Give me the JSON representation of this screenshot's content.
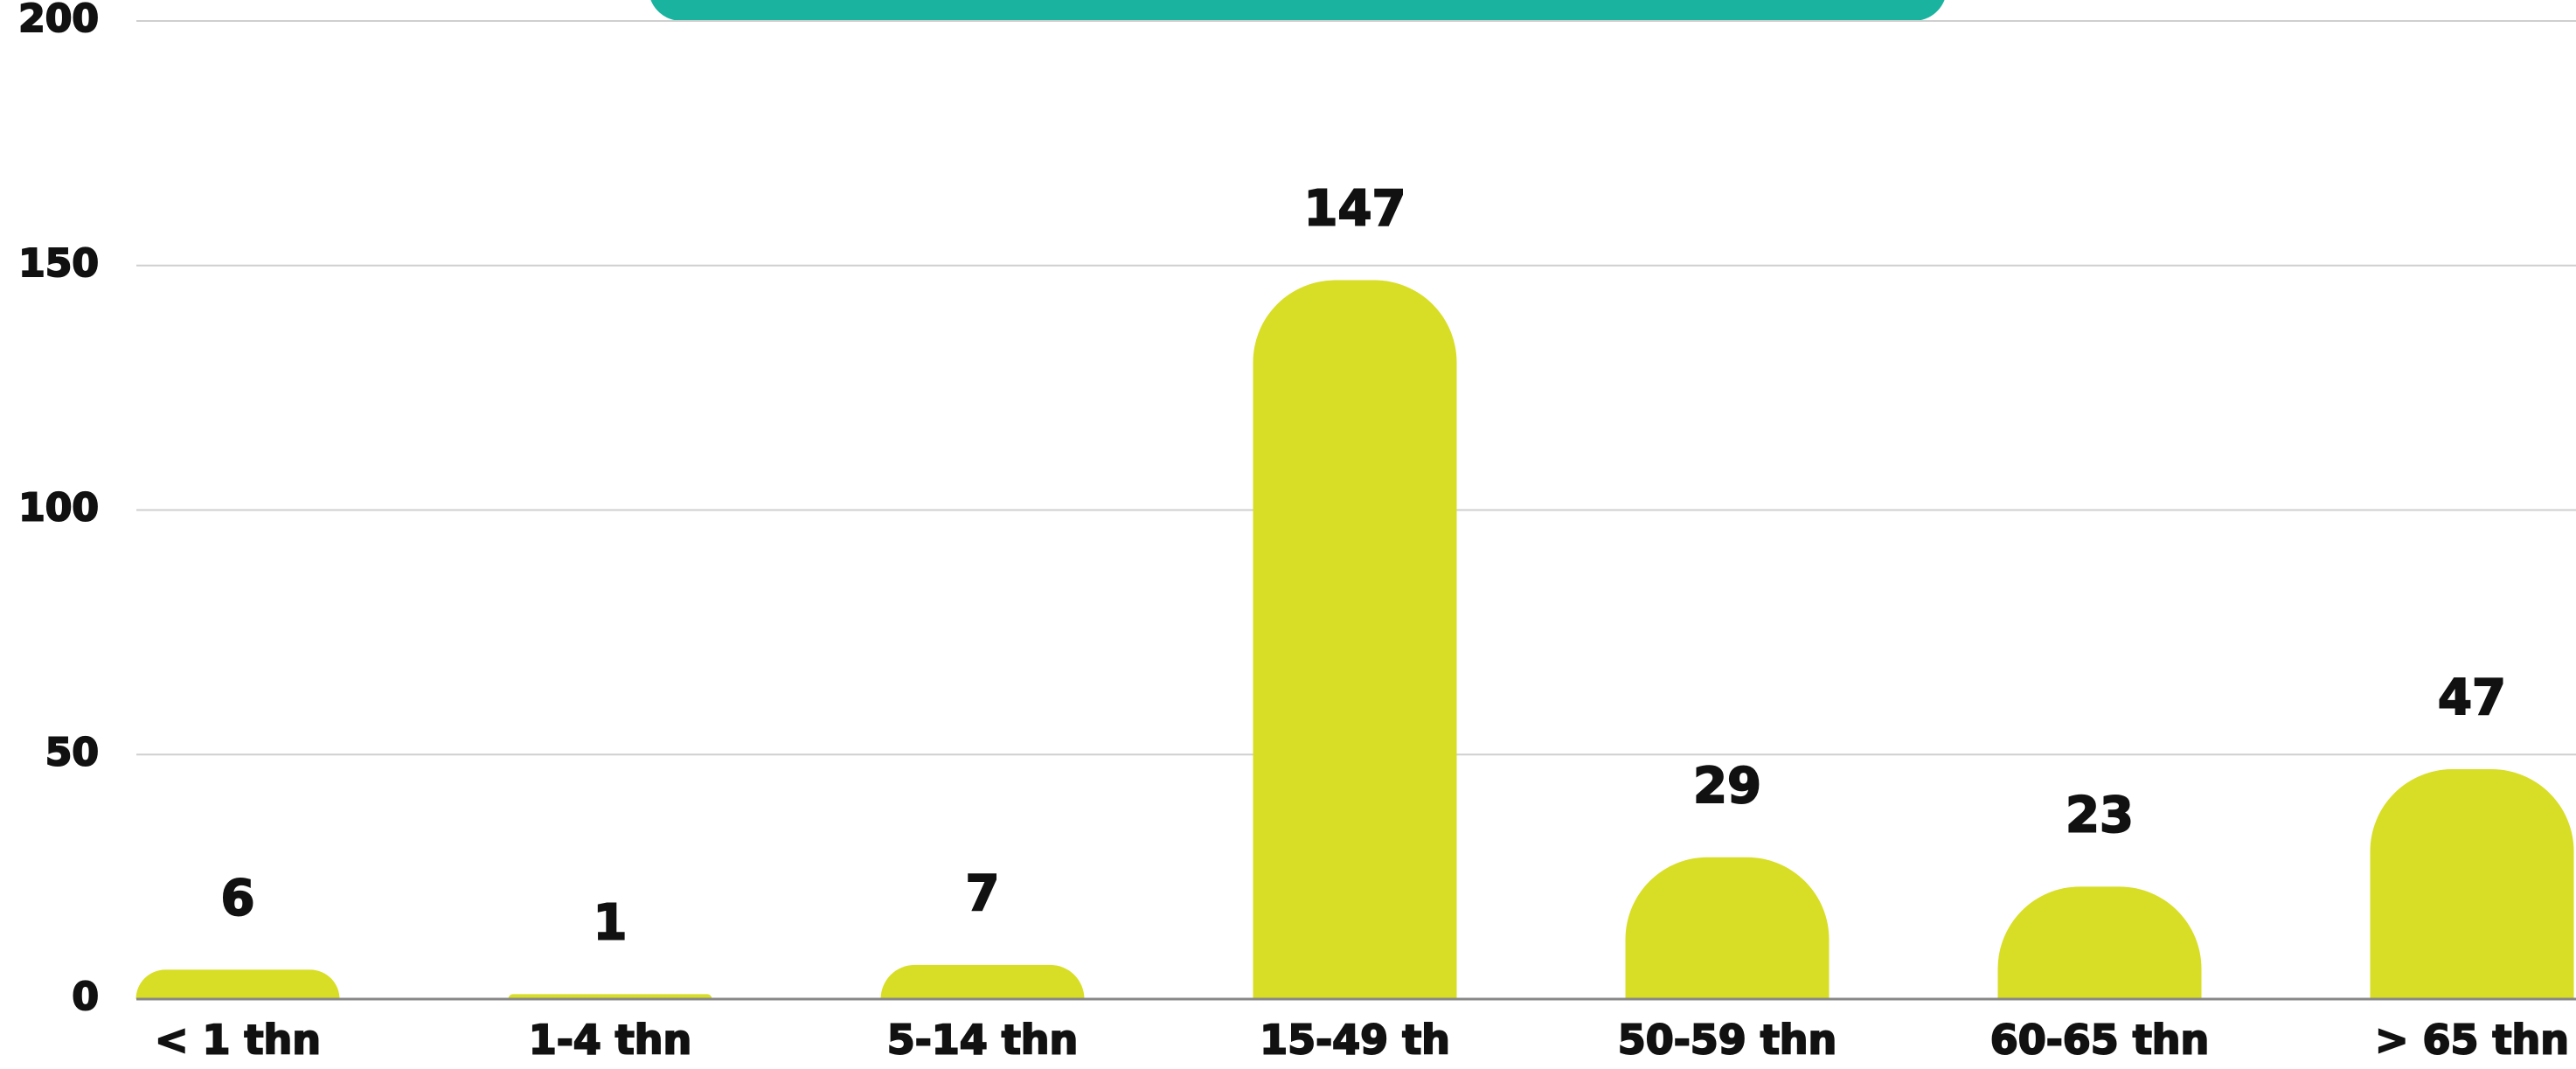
{
  "chart_data": {
    "type": "bar",
    "categories": [
      "< 1 thn",
      "1-4 thn",
      "5-14 thn",
      "15-49 th",
      "50-59 thn",
      "60-65 thn",
      "> 65 thn"
    ],
    "values": [
      6,
      1,
      7,
      147,
      29,
      23,
      47
    ],
    "color": "#d8de26",
    "ylim": [
      0,
      200
    ],
    "yticks": [
      0,
      50,
      100,
      150,
      200
    ],
    "grid": true
  }
}
